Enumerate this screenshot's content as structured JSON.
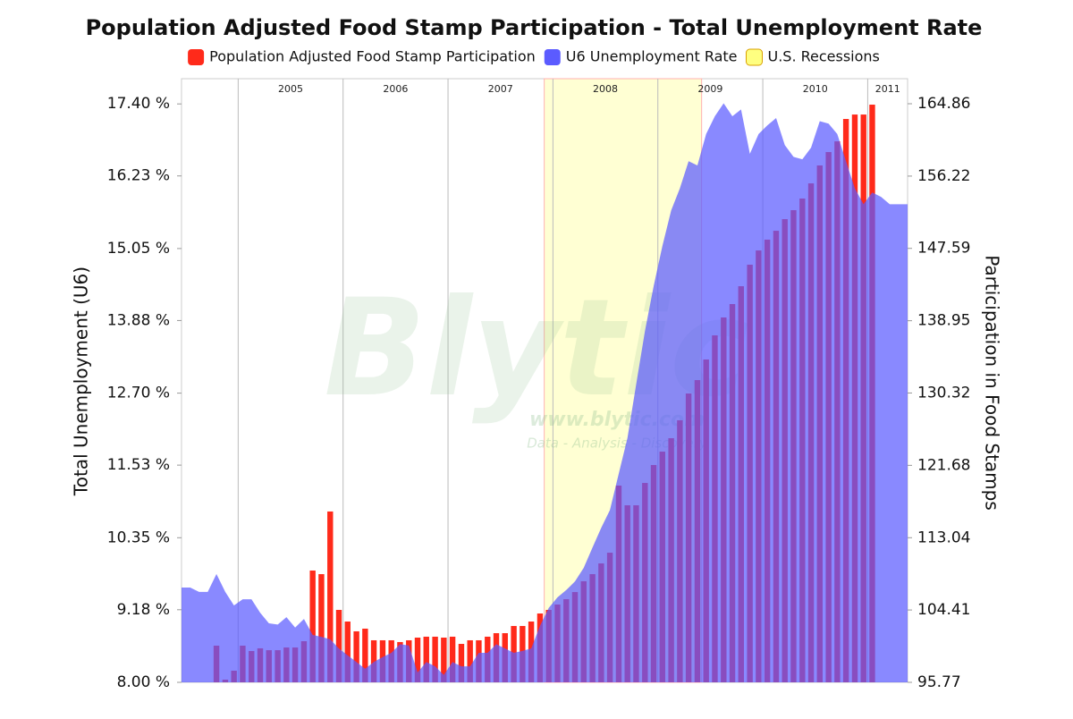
{
  "chart_data": {
    "type": "combo",
    "title": "Population Adjusted Food Stamp Participation - Total Unemployment Rate",
    "y_label": "Total Unemployment (U6)",
    "y2_label": "Participation in Food Stamps",
    "watermark": [
      "Blytic",
      "www.blytic.com",
      "Data - Analysis - Discovery"
    ],
    "x": [
      2004.46,
      2004.543,
      2004.627,
      2004.71,
      2004.793,
      2004.877,
      2004.96,
      2005.043,
      2005.127,
      2005.21,
      2005.293,
      2005.377,
      2005.46,
      2005.543,
      2005.627,
      2005.71,
      2005.793,
      2005.877,
      2005.96,
      2006.043,
      2006.127,
      2006.21,
      2006.293,
      2006.377,
      2006.46,
      2006.543,
      2006.627,
      2006.71,
      2006.793,
      2006.877,
      2006.96,
      2007.043,
      2007.127,
      2007.21,
      2007.293,
      2007.377,
      2007.46,
      2007.543,
      2007.627,
      2007.71,
      2007.793,
      2007.877,
      2007.96,
      2008.043,
      2008.127,
      2008.21,
      2008.293,
      2008.377,
      2008.46,
      2008.543,
      2008.627,
      2008.71,
      2008.793,
      2008.877,
      2008.96,
      2009.043,
      2009.127,
      2009.21,
      2009.293,
      2009.377,
      2009.46,
      2009.543,
      2009.627,
      2009.71,
      2009.793,
      2009.877,
      2009.96,
      2010.043,
      2010.127,
      2010.21,
      2010.293,
      2010.377,
      2010.46,
      2010.543,
      2010.627,
      2010.71,
      2010.793,
      2010.877,
      2010.96,
      2011.043,
      2011.127,
      2011.21
    ],
    "xlim": [
      2004.46,
      2011.38
    ],
    "xticks": [
      2005,
      2006,
      2007,
      2008,
      2009,
      2010,
      2011
    ],
    "ylim": [
      8,
      17.81
    ],
    "yticks": [
      {
        "value": 8,
        "label": "8.00 %"
      },
      {
        "value": 9.18,
        "label": "9.18 %"
      },
      {
        "value": 10.35,
        "label": "10.35 %"
      },
      {
        "value": 11.53,
        "label": "11.53 %"
      },
      {
        "value": 12.7,
        "label": "12.70 %"
      },
      {
        "value": 13.88,
        "label": "13.88 %"
      },
      {
        "value": 15.05,
        "label": "15.05 %"
      },
      {
        "value": 16.23,
        "label": "16.23 %"
      },
      {
        "value": 17.4,
        "label": "17.40 %"
      }
    ],
    "y2lim": [
      95.77,
      167.85
    ],
    "y2ticks": [
      95.77,
      104.41,
      113.04,
      121.68,
      130.32,
      138.95,
      147.59,
      156.22,
      164.86
    ],
    "recession": {
      "name": "U.S. Recessions",
      "color": "#ffff80",
      "start": 2007.917,
      "end": 2009.417
    },
    "series": [
      {
        "name": "Population Adjusted Food Stamp Participation",
        "color": "#ff2a1a",
        "type": "bar",
        "axis": "y2",
        "values": [
          null,
          null,
          null,
          null,
          100.15,
          96.09,
          97.16,
          100.15,
          99.51,
          99.83,
          99.61,
          99.61,
          99.93,
          99.93,
          100.68,
          109.12,
          108.69,
          116.17,
          104.42,
          103.03,
          101.86,
          102.18,
          100.79,
          100.79,
          100.79,
          100.58,
          100.79,
          101.11,
          101.22,
          101.22,
          101.11,
          101.22,
          100.36,
          100.79,
          100.79,
          101.22,
          101.64,
          101.64,
          102.5,
          102.5,
          103.03,
          103.99,
          104.42,
          105.06,
          105.7,
          106.55,
          107.84,
          108.69,
          109.97,
          111.25,
          119.26,
          116.91,
          116.91,
          119.58,
          121.72,
          123.32,
          124.92,
          127.06,
          130.26,
          131.86,
          134.32,
          137.2,
          139.34,
          140.94,
          143.07,
          145.64,
          147.34,
          148.63,
          149.69,
          151.08,
          152.15,
          153.54,
          155.35,
          157.49,
          159.09,
          160.37,
          163.04,
          163.57,
          163.57,
          164.75,
          null,
          null
        ]
      },
      {
        "name": "U6 Unemployment Rate",
        "color": "#5b5bff",
        "type": "area",
        "axis": "y",
        "values": [
          9.54,
          9.54,
          9.47,
          9.47,
          9.76,
          9.47,
          9.25,
          9.35,
          9.35,
          9.13,
          8.96,
          8.94,
          9.06,
          8.89,
          9.03,
          8.77,
          8.74,
          8.7,
          8.55,
          8.44,
          8.33,
          8.22,
          8.33,
          8.41,
          8.48,
          8.62,
          8.6,
          8.16,
          8.33,
          8.26,
          8.12,
          8.33,
          8.26,
          8.26,
          8.48,
          8.48,
          8.62,
          8.55,
          8.48,
          8.51,
          8.55,
          8.92,
          9.21,
          9.38,
          9.5,
          9.64,
          9.86,
          10.19,
          10.51,
          10.8,
          11.39,
          11.97,
          12.84,
          13.71,
          14.44,
          15.09,
          15.67,
          16.03,
          16.47,
          16.4,
          16.91,
          17.2,
          17.41,
          17.2,
          17.31,
          16.59,
          16.91,
          17.05,
          17.17,
          16.73,
          16.54,
          16.5,
          16.69,
          17.12,
          17.08,
          16.91,
          16.47,
          16.03,
          15.77,
          15.96,
          15.89,
          15.77
        ]
      }
    ]
  }
}
